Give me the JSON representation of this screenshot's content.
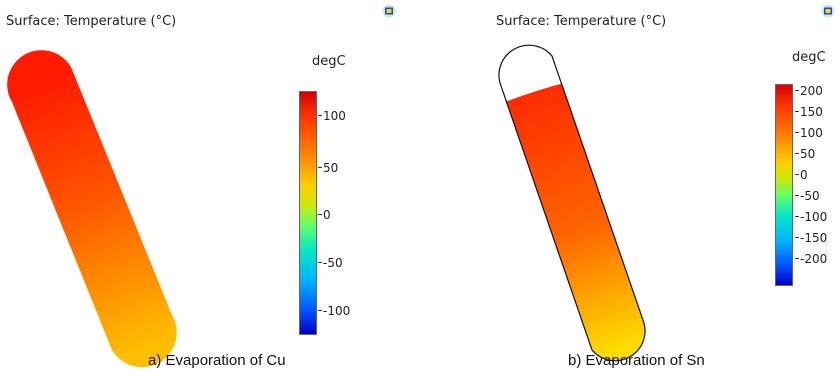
{
  "panels": [
    {
      "plot_title": "Surface: Temperature (°C)",
      "unit": "degC",
      "colorbar_ticks": [
        "100",
        "50",
        "0",
        "-50",
        "-100"
      ],
      "caption": "a) Evaporation of Cu"
    },
    {
      "plot_title": "Surface: Temperature (°C)",
      "unit": "degC",
      "colorbar_ticks": [
        "200",
        "150",
        "100",
        "50",
        "0",
        "-50",
        "-100",
        "-150",
        "-200"
      ],
      "caption": "b) Evaporation of Sn"
    }
  ],
  "colors": {
    "hot": "#ff1a00",
    "mid": "#ff6600",
    "cool": "#ffcc00",
    "outline": "#111111"
  }
}
